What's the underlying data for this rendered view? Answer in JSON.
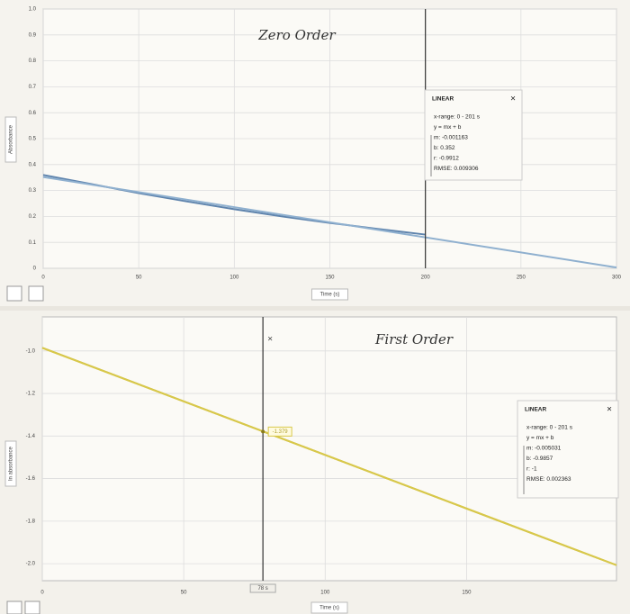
{
  "chart_data": [
    {
      "type": "line",
      "annotation": "Zero Order",
      "y_label": "Absorbance",
      "x_label": "Time (s)",
      "xlim": [
        0,
        300
      ],
      "ylim": [
        0,
        1
      ],
      "grid": true,
      "xticks": [
        0,
        50,
        100,
        150,
        200,
        250,
        300
      ],
      "yticks": [
        0,
        0.1,
        0.2,
        0.3,
        0.4,
        0.5,
        0.6,
        0.7,
        0.8,
        0.9,
        {
          "value": 1,
          "label": "1.0"
        }
      ],
      "series": [
        {
          "color": "#5f84ad",
          "x": [
            0,
            25,
            50,
            75,
            100,
            125,
            150,
            175,
            200
          ],
          "values": [
            0.36,
            0.325,
            0.29,
            0.258,
            0.228,
            0.2,
            0.175,
            0.152,
            0.13
          ]
        },
        {
          "color": "#8fb0cf",
          "x": [
            0,
            300
          ],
          "values": [
            0.352,
            0.003
          ]
        }
      ],
      "cursor": {
        "x": 200
      },
      "fit_box": {
        "title": "LINEAR",
        "lines": [
          "x-range: 0 - 201 s",
          "y = mx + b",
          "m: -0.001163",
          "b: 0.352",
          "r: -0.9912",
          "RMSE: 0.009306"
        ]
      }
    },
    {
      "type": "line",
      "annotation": "First Order",
      "y_label": "ln absorbance",
      "x_label": "Time (s)",
      "xlim": [
        0,
        203
      ],
      "ylim": [
        -2.08,
        -0.84
      ],
      "grid": true,
      "xticks": [
        0,
        50,
        100,
        150
      ],
      "yticks": [
        {
          "value": -1,
          "label": "-1.0"
        },
        -1.2,
        -1.4,
        -1.6,
        -1.8,
        {
          "value": -2,
          "label": "-2.0"
        }
      ],
      "series": [
        {
          "color": "#c4b22c",
          "x": [
            0,
            50,
            100,
            150,
            203
          ],
          "values": [
            -0.985,
            -1.237,
            -1.489,
            -1.741,
            -2.007
          ]
        },
        {
          "color": "#d8c84a",
          "x": [
            0,
            203
          ],
          "values": [
            -0.9857,
            -2.007
          ]
        }
      ],
      "cursor": {
        "x": 78,
        "label": "78 s",
        "value": -1.379
      },
      "fit_box": {
        "title": "LINEAR",
        "lines": [
          "x-range: 0 - 201 s",
          "y = mx + b",
          "m: -0.005031",
          "b: -0.9857",
          "r: -1",
          "RMSE: 0.002363"
        ]
      }
    }
  ]
}
